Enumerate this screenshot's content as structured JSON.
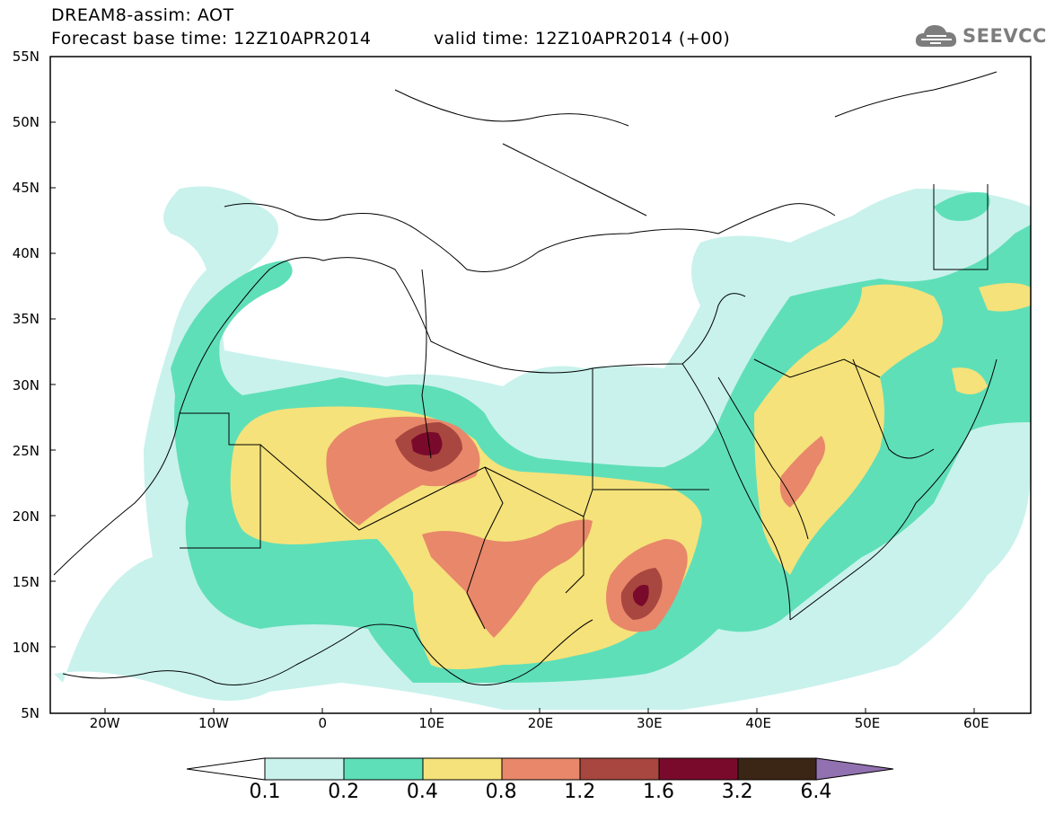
{
  "header": {
    "title_line1": "DREAM8-assim: AOT",
    "title_line2": "Forecast base time: 12Z10APR2014",
    "valid_time": "valid time: 12Z10APR2014 (+00)",
    "logo_text": "SEEVCCC",
    "logo_icon": "cloud-icon"
  },
  "map": {
    "variable": "AOT",
    "lon_range": [
      -25,
      65
    ],
    "lat_range": [
      5,
      55
    ],
    "lat_labels": [
      "55N",
      "50N",
      "45N",
      "40N",
      "35N",
      "30N",
      "25N",
      "20N",
      "15N",
      "10N",
      "5N"
    ],
    "lon_labels": [
      "20W",
      "10W",
      "0",
      "10E",
      "20E",
      "30E",
      "40E",
      "50E",
      "60E"
    ]
  },
  "colorbar": {
    "labels": [
      "0.1",
      "0.2",
      "0.4",
      "0.8",
      "1.2",
      "1.6",
      "3.2",
      "6.4"
    ],
    "colors": [
      "#c9f2ec",
      "#5fdfb8",
      "#f5e27a",
      "#e8876a",
      "#a8473f",
      "#7a0a2c",
      "#3b2616",
      "#9271b0"
    ],
    "under_color": "#ffffff"
  }
}
